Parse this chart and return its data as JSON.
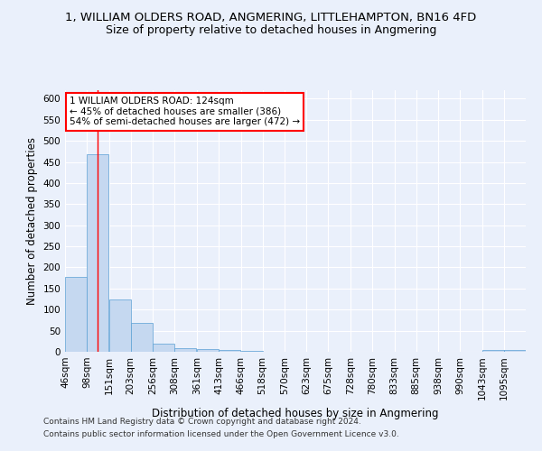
{
  "title_line1": "1, WILLIAM OLDERS ROAD, ANGMERING, LITTLEHAMPTON, BN16 4FD",
  "title_line2": "Size of property relative to detached houses in Angmering",
  "xlabel": "Distribution of detached houses by size in Angmering",
  "ylabel": "Number of detached properties",
  "footer_line1": "Contains HM Land Registry data © Crown copyright and database right 2024.",
  "footer_line2": "Contains public sector information licensed under the Open Government Licence v3.0.",
  "bins": [
    46,
    98,
    151,
    203,
    256,
    308,
    361,
    413,
    466,
    518,
    570,
    623,
    675,
    728,
    780,
    833,
    885,
    938,
    990,
    1043,
    1095
  ],
  "bin_labels": [
    "46sqm",
    "98sqm",
    "151sqm",
    "203sqm",
    "256sqm",
    "308sqm",
    "361sqm",
    "413sqm",
    "466sqm",
    "518sqm",
    "570sqm",
    "623sqm",
    "675sqm",
    "728sqm",
    "780sqm",
    "833sqm",
    "885sqm",
    "938sqm",
    "990sqm",
    "1043sqm",
    "1095sqm"
  ],
  "bar_values": [
    178,
    468,
    125,
    68,
    20,
    8,
    6,
    4,
    3,
    0,
    0,
    0,
    0,
    0,
    0,
    0,
    0,
    0,
    0,
    5,
    4
  ],
  "bar_color": "#c5d8f0",
  "bar_edge_color": "#5a9fd4",
  "annotation_text": "1 WILLIAM OLDERS ROAD: 124sqm\n← 45% of detached houses are smaller (386)\n54% of semi-detached houses are larger (472) →",
  "annotation_box_color": "white",
  "annotation_box_edge_color": "red",
  "property_line_x": 124,
  "property_line_color": "red",
  "ylim": [
    0,
    620
  ],
  "yticks": [
    0,
    50,
    100,
    150,
    200,
    250,
    300,
    350,
    400,
    450,
    500,
    550,
    600
  ],
  "background_color": "#eaf0fb",
  "axes_background_color": "#eaf0fb",
  "grid_color": "white",
  "title1_fontsize": 9.5,
  "title2_fontsize": 9,
  "axis_label_fontsize": 8.5,
  "tick_fontsize": 7.5,
  "footer_fontsize": 6.5
}
